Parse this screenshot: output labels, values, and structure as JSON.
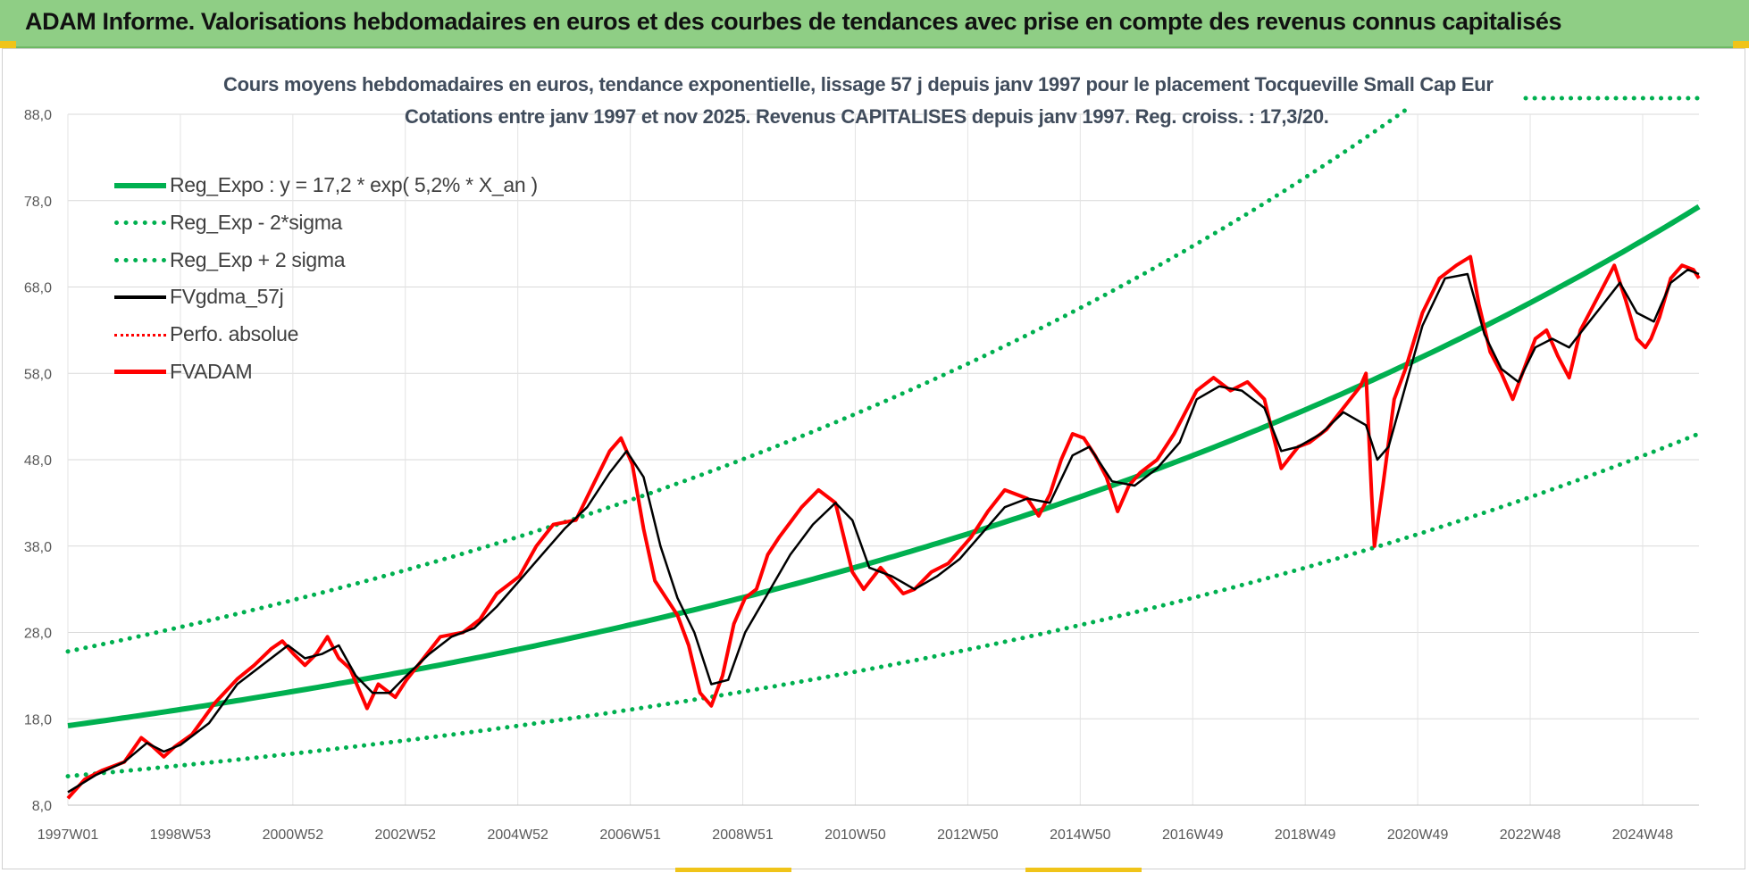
{
  "banner": {
    "title": "ADAM Informe. Valorisations hebdomadaires en euros et des courbes de tendances avec prise en compte des revenus connus capitalisés"
  },
  "colors": {
    "banner_bg": "#8fce85",
    "trend_green": "#00b050",
    "fund_red": "#ff0000",
    "smoothed_black": "#000000",
    "title_text": "#404c5c"
  },
  "chart_data": {
    "type": "line",
    "title": "Cours moyens hebdomadaires en euros, tendance exponentielle, lissage 57 j depuis janv 1997  pour le placement Tocqueville Small Cap Eur",
    "subtitle": "Cotations entre janv 1997 et nov 2025. Revenus CAPITALISES depuis janv 1997. Reg. croiss. : 17,3/20.",
    "xlabel": "",
    "ylabel": "",
    "x_tick_labels": [
      "1997W01",
      "1998W53",
      "2000W52",
      "2002W52",
      "2004W52",
      "2006W51",
      "2008W51",
      "2010W50",
      "2012W50",
      "2014W50",
      "2016W49",
      "2018W49",
      "2020W49",
      "2022W48",
      "2024W48"
    ],
    "x_range": [
      1997.0,
      2025.9
    ],
    "y_ticks": [
      "8,0",
      "18,0",
      "28,0",
      "38,0",
      "48,0",
      "58,0",
      "68,0",
      "78,0",
      "88,0"
    ],
    "ylim": [
      8,
      88
    ],
    "grid": true,
    "legend_position": "top-left",
    "regression": {
      "a": 17.2,
      "growth": 0.052,
      "sigma_factor_low": 0.66,
      "sigma_factor_high": 1.5
    },
    "legend": [
      {
        "label": "Reg_Expo : y = 17,2 * exp( 5,2% *  X_an )",
        "style": "solid-green"
      },
      {
        "label": "Reg_Exp - 2*sigma",
        "style": "dot-green"
      },
      {
        "label": "Reg_Exp + 2 sigma",
        "style": "dot-green"
      },
      {
        "label": "FVgdma_57j",
        "style": "solid-black"
      },
      {
        "label": "Perfo. absolue",
        "style": "dot-red"
      },
      {
        "label": "FVADAM",
        "style": "solid-red"
      }
    ],
    "series": [
      {
        "name": "FVADAM",
        "x": [
          1997.0,
          1997.3,
          1997.6,
          1998.0,
          1998.3,
          1998.5,
          1998.7,
          1998.9,
          1999.2,
          1999.6,
          2000.0,
          2000.3,
          2000.6,
          2000.8,
          2001.0,
          2001.2,
          2001.4,
          2001.6,
          2001.8,
          2002.0,
          2002.3,
          2002.5,
          2002.8,
          2003.0,
          2003.3,
          2003.6,
          2004.0,
          2004.3,
          2004.6,
          2005.0,
          2005.3,
          2005.6,
          2006.0,
          2006.3,
          2006.6,
          2006.8,
          2007.0,
          2007.2,
          2007.4,
          2007.6,
          2007.8,
          2008.0,
          2008.2,
          2008.4,
          2008.6,
          2008.8,
          2009.0,
          2009.2,
          2009.4,
          2009.6,
          2010.0,
          2010.3,
          2010.6,
          2010.9,
          2011.1,
          2011.4,
          2011.6,
          2011.8,
          2012.0,
          2012.3,
          2012.6,
          2013.0,
          2013.3,
          2013.6,
          2014.0,
          2014.2,
          2014.4,
          2014.6,
          2014.8,
          2015.0,
          2015.2,
          2015.4,
          2015.6,
          2015.8,
          2016.0,
          2016.3,
          2016.6,
          2017.0,
          2017.3,
          2017.6,
          2017.9,
          2018.2,
          2018.5,
          2018.8,
          2019.0,
          2019.3,
          2019.6,
          2019.9,
          2020.0,
          2020.1,
          2020.15,
          2020.3,
          2020.5,
          2020.7,
          2021.0,
          2021.3,
          2021.6,
          2021.85,
          2022.0,
          2022.2,
          2022.4,
          2022.6,
          2022.8,
          2023.0,
          2023.2,
          2023.4,
          2023.6,
          2023.8,
          2024.0,
          2024.2,
          2024.4,
          2024.6,
          2024.8,
          2024.95,
          2025.05,
          2025.2,
          2025.4,
          2025.6,
          2025.8,
          2025.9
        ],
        "values": [
          8.8,
          11.0,
          12.0,
          13.0,
          15.8,
          14.8,
          13.6,
          14.8,
          16.2,
          19.8,
          22.6,
          24.2,
          26.1,
          27.0,
          25.5,
          24.2,
          25.5,
          27.5,
          25.0,
          23.8,
          19.2,
          22.0,
          20.5,
          22.5,
          25.0,
          27.5,
          28.0,
          29.5,
          32.5,
          34.5,
          38.0,
          40.5,
          41.0,
          45.0,
          49.0,
          50.5,
          47.5,
          40.0,
          34.0,
          32.0,
          30.0,
          26.5,
          21.0,
          19.5,
          23.0,
          29.0,
          32.0,
          33.0,
          37.0,
          39.0,
          42.5,
          44.5,
          43.0,
          35.0,
          33.0,
          35.5,
          34.0,
          32.5,
          33.0,
          35.0,
          36.0,
          39.0,
          42.0,
          44.5,
          43.5,
          41.5,
          44.0,
          48.0,
          51.0,
          50.5,
          48.5,
          46.0,
          42.0,
          45.0,
          46.5,
          48.0,
          51.0,
          56.0,
          57.5,
          56.0,
          57.0,
          55.0,
          47.0,
          49.5,
          50.0,
          51.5,
          54.0,
          56.5,
          58.0,
          44.0,
          38.0,
          45.0,
          55.0,
          58.5,
          65.0,
          69.0,
          70.5,
          71.5,
          66.0,
          60.5,
          58.0,
          55.0,
          58.5,
          62.0,
          63.0,
          60.0,
          57.5,
          63.0,
          65.5,
          68.0,
          70.5,
          66.5,
          62.0,
          61.0,
          62.0,
          64.5,
          69.0,
          70.5,
          70.0,
          69.0
        ]
      },
      {
        "name": "FVgdma_57j",
        "x": [
          1997.0,
          1997.5,
          1998.0,
          1998.4,
          1998.7,
          1999.0,
          1999.5,
          2000.0,
          2000.5,
          2000.9,
          2001.2,
          2001.5,
          2001.8,
          2002.1,
          2002.4,
          2002.7,
          2003.0,
          2003.4,
          2003.8,
          2004.2,
          2004.6,
          2005.0,
          2005.4,
          2005.8,
          2006.2,
          2006.6,
          2006.9,
          2007.2,
          2007.5,
          2007.8,
          2008.1,
          2008.4,
          2008.7,
          2009.0,
          2009.4,
          2009.8,
          2010.2,
          2010.6,
          2010.9,
          2011.2,
          2011.6,
          2012.0,
          2012.4,
          2012.8,
          2013.2,
          2013.6,
          2014.0,
          2014.4,
          2014.8,
          2015.1,
          2015.5,
          2015.9,
          2016.3,
          2016.7,
          2017.0,
          2017.4,
          2017.8,
          2018.2,
          2018.5,
          2018.8,
          2019.2,
          2019.6,
          2020.0,
          2020.2,
          2020.4,
          2020.7,
          2021.0,
          2021.4,
          2021.8,
          2022.1,
          2022.4,
          2022.7,
          2023.0,
          2023.3,
          2023.6,
          2023.9,
          2024.2,
          2024.5,
          2024.8,
          2025.1,
          2025.4,
          2025.7,
          2025.9
        ],
        "values": [
          9.5,
          11.5,
          13.0,
          15.2,
          14.2,
          15.0,
          17.5,
          22.0,
          24.5,
          26.5,
          25.0,
          25.5,
          26.5,
          23.0,
          21.0,
          21.0,
          23.0,
          25.5,
          27.5,
          28.5,
          31.0,
          34.0,
          37.0,
          40.0,
          42.5,
          46.5,
          49.0,
          46.0,
          38.0,
          32.0,
          28.0,
          22.0,
          22.5,
          28.0,
          32.5,
          37.0,
          40.5,
          43.0,
          41.0,
          35.5,
          34.5,
          33.0,
          34.5,
          36.5,
          39.5,
          42.5,
          43.5,
          43.0,
          48.5,
          49.5,
          45.5,
          45.0,
          47.0,
          50.0,
          55.0,
          56.5,
          56.0,
          54.0,
          49.0,
          49.5,
          51.0,
          53.5,
          52.0,
          48.0,
          49.5,
          56.5,
          63.5,
          69.0,
          69.5,
          62.5,
          58.5,
          57.0,
          61.0,
          62.0,
          61.0,
          63.5,
          66.0,
          68.5,
          65.0,
          64.0,
          68.5,
          70.0,
          69.5
        ]
      }
    ]
  }
}
